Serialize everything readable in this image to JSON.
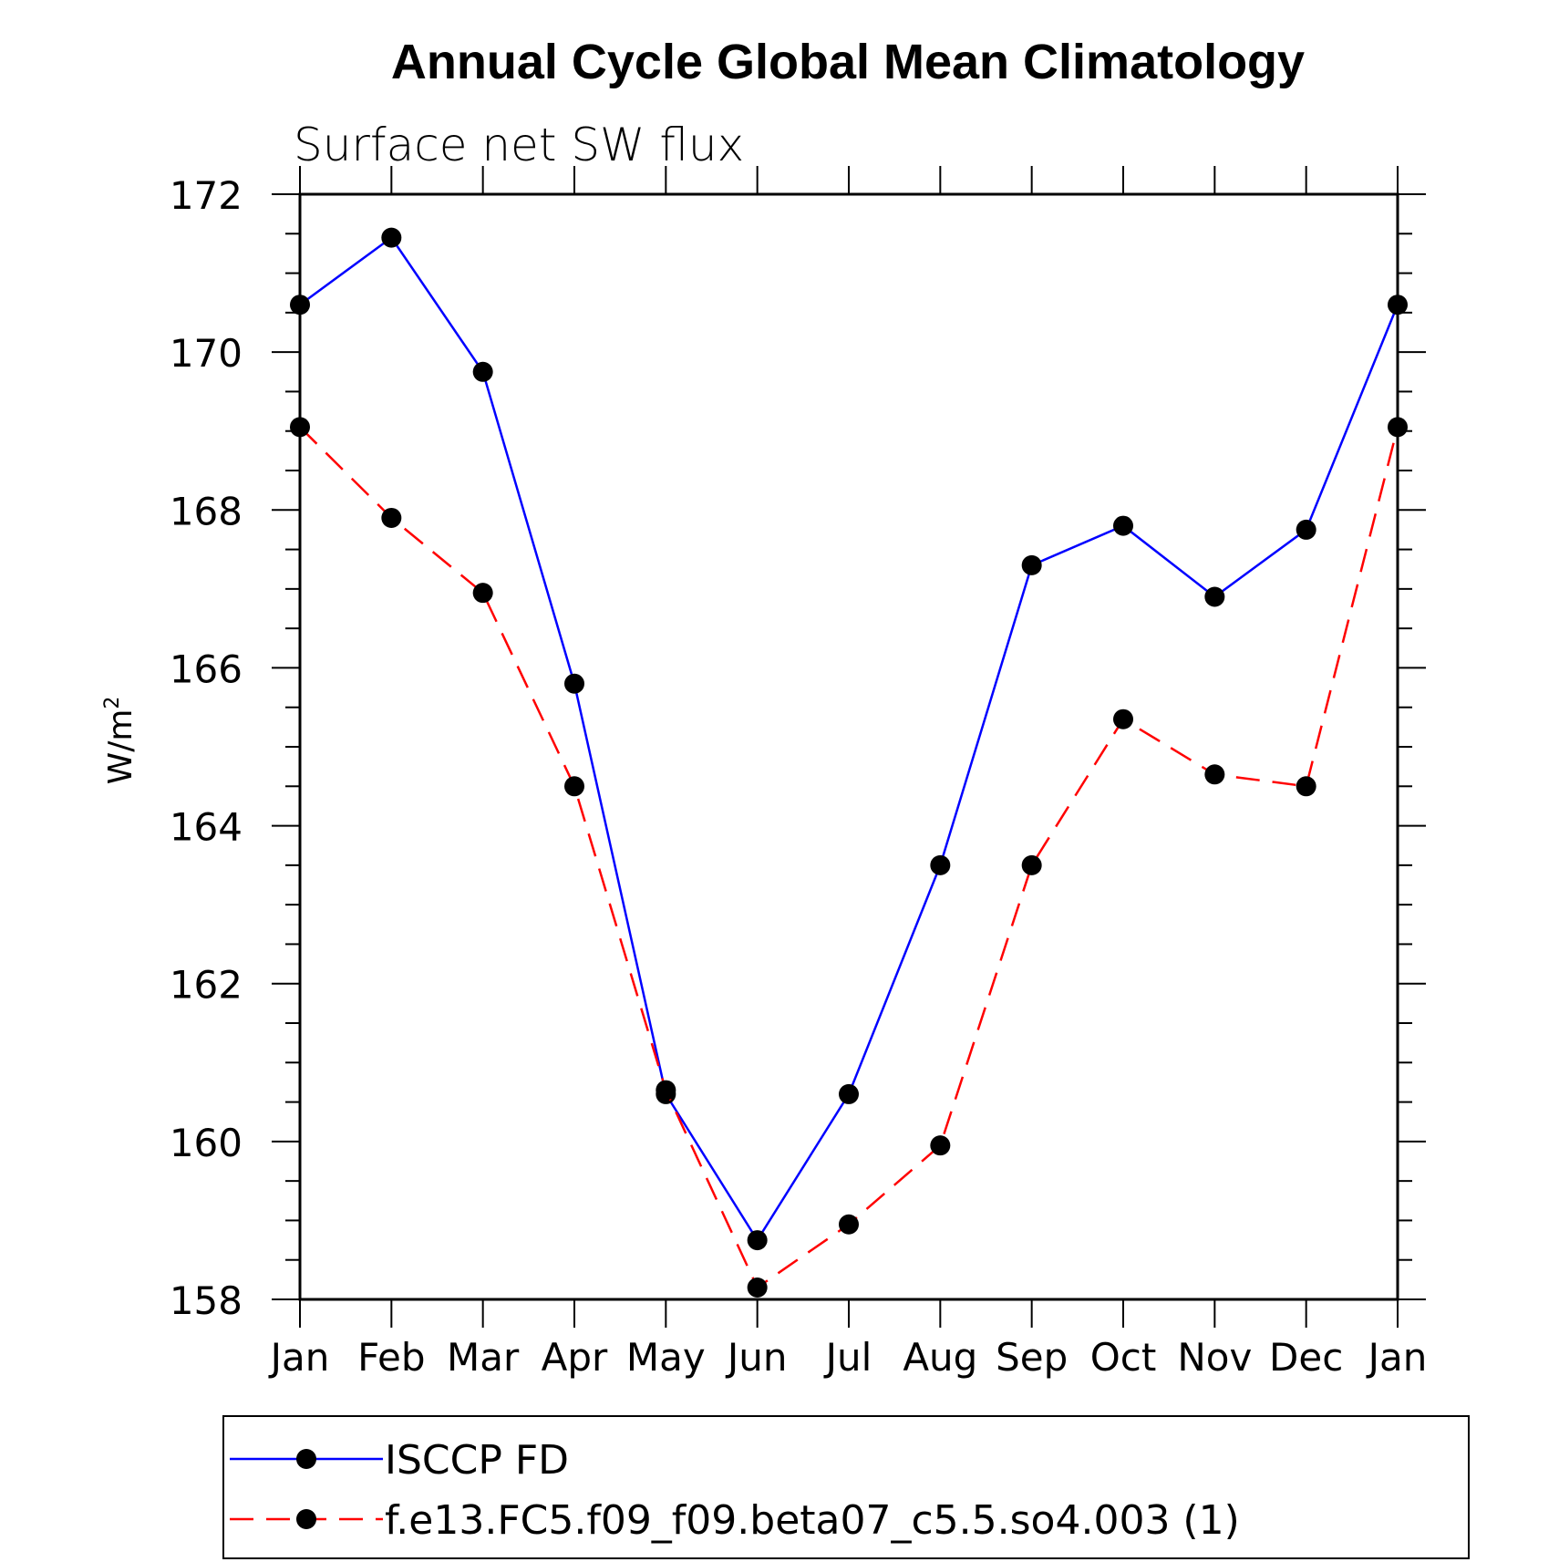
{
  "chart_data": {
    "type": "line",
    "title": "Annual Cycle Global Mean Climatology",
    "subtitle": "Surface net SW flux",
    "xlabel": "",
    "ylabel": "W/m",
    "ylabel_sup": "2",
    "categories": [
      "Jan",
      "Feb",
      "Mar",
      "Apr",
      "May",
      "Jun",
      "Jul",
      "Aug",
      "Sep",
      "Oct",
      "Nov",
      "Dec",
      "Jan"
    ],
    "ylim": [
      158,
      172
    ],
    "yticks": [
      158,
      160,
      162,
      164,
      166,
      168,
      170,
      172
    ],
    "ytick_labels": [
      "158",
      "160",
      "162",
      "164",
      "166",
      "168",
      "170",
      "172"
    ],
    "y_minor_step": 0.5,
    "legend_placement": "bottom",
    "series": [
      {
        "name": "ISCCP FD",
        "color": "#0000ff",
        "style": "solid",
        "values": [
          170.6,
          171.45,
          169.75,
          165.8,
          160.6,
          158.75,
          160.6,
          163.5,
          167.3,
          167.8,
          166.9,
          167.75,
          170.6
        ]
      },
      {
        "name": "f.e13.FC5.f09_f09.beta07_c5.5.so4.003 (1)",
        "color": "#ff0000",
        "style": "dashed",
        "values": [
          169.05,
          167.9,
          166.95,
          164.5,
          160.65,
          158.15,
          158.95,
          159.95,
          163.5,
          165.35,
          164.65,
          164.5,
          169.05
        ]
      }
    ]
  }
}
